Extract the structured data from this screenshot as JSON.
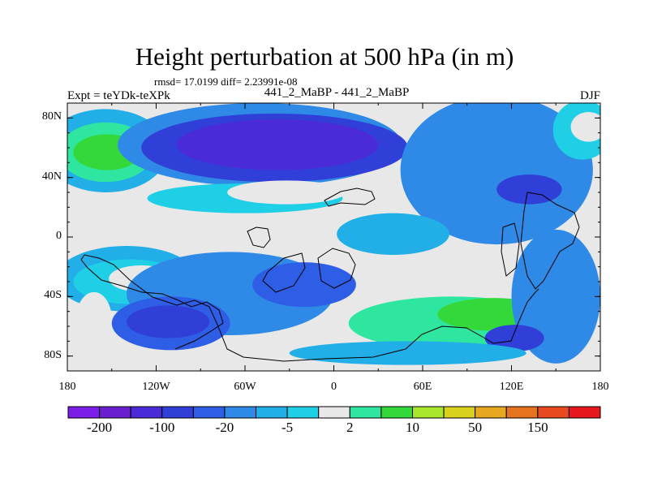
{
  "title": "Height perturbation at 500 hPa (in m)",
  "stats": "rmsd= 17.0199 diff= 2.23991e-08",
  "experiment": "Expt = teYDk-teXPk",
  "center_label": "441_2_MaBP - 441_2_MaBP",
  "season": "DJF",
  "map": {
    "projection": "cylindrical equidistant",
    "lon_range": [
      -180,
      180
    ],
    "lat_range": [
      -90,
      90
    ],
    "lat_ticks": [
      {
        "value": 80,
        "label": "80N"
      },
      {
        "value": 40,
        "label": "40N"
      },
      {
        "value": 0,
        "label": "0"
      },
      {
        "value": -40,
        "label": "40S"
      },
      {
        "value": -80,
        "label": "80S"
      }
    ],
    "lon_ticks": [
      {
        "value": -180,
        "label": "180"
      },
      {
        "value": -120,
        "label": "120W"
      },
      {
        "value": -60,
        "label": "60W"
      },
      {
        "value": 0,
        "label": "0"
      },
      {
        "value": 60,
        "label": "60E"
      },
      {
        "value": 120,
        "label": "120E"
      },
      {
        "value": 180,
        "label": "180"
      }
    ],
    "background_level_color": "#e8e8e8",
    "regions": [
      {
        "level": 6,
        "lon": -154,
        "lat": 58,
        "rx": 42,
        "ry": 28
      },
      {
        "level": 9,
        "lon": -154,
        "lat": 57,
        "rx": 32,
        "ry": 20
      },
      {
        "level": 10,
        "lon": -153,
        "lat": 57,
        "rx": 23,
        "ry": 12
      },
      {
        "level": 5,
        "lon": -50,
        "lat": 62,
        "rx": 96,
        "ry": 28
      },
      {
        "level": 3,
        "lon": -40,
        "lat": 60,
        "rx": 90,
        "ry": 23
      },
      {
        "level": 2,
        "lon": -38,
        "lat": 62,
        "rx": 68,
        "ry": 17
      },
      {
        "level": 7,
        "lon": -60,
        "lat": 26,
        "rx": 66,
        "ry": 10
      },
      {
        "level": 8,
        "lon": -32,
        "lat": 30,
        "rx": 40,
        "ry": 8
      },
      {
        "level": 5,
        "lon": 110,
        "lat": 45,
        "rx": 65,
        "ry": 50
      },
      {
        "level": 3,
        "lon": 132,
        "lat": 32,
        "rx": 22,
        "ry": 10
      },
      {
        "level": 7,
        "lon": 168,
        "lat": 72,
        "rx": 20,
        "ry": 20
      },
      {
        "level": 8,
        "lon": 172,
        "lat": 74,
        "rx": 12,
        "ry": 10
      },
      {
        "level": 6,
        "lon": 40,
        "lat": 2,
        "rx": 38,
        "ry": 14
      },
      {
        "level": 6,
        "lon": -140,
        "lat": -28,
        "rx": 48,
        "ry": 22
      },
      {
        "level": 7,
        "lon": -138,
        "lat": -30,
        "rx": 38,
        "ry": 15
      },
      {
        "level": 8,
        "lon": -130,
        "lat": -28,
        "rx": 22,
        "ry": 9
      },
      {
        "level": 5,
        "lon": -70,
        "lat": -38,
        "rx": 70,
        "ry": 28
      },
      {
        "level": 4,
        "lon": -110,
        "lat": -58,
        "rx": 40,
        "ry": 18
      },
      {
        "level": 3,
        "lon": -112,
        "lat": -57,
        "rx": 28,
        "ry": 11
      },
      {
        "level": 8,
        "lon": -162,
        "lat": -55,
        "rx": 12,
        "ry": 18
      },
      {
        "level": 9,
        "lon": 80,
        "lat": -58,
        "rx": 70,
        "ry": 18
      },
      {
        "level": 10,
        "lon": 108,
        "lat": -52,
        "rx": 38,
        "ry": 11
      },
      {
        "level": 5,
        "lon": 150,
        "lat": -40,
        "rx": 30,
        "ry": 45
      },
      {
        "level": 3,
        "lon": 122,
        "lat": -68,
        "rx": 20,
        "ry": 9
      },
      {
        "level": 6,
        "lon": 50,
        "lat": -78,
        "rx": 80,
        "ry": 8
      },
      {
        "level": 4,
        "lon": -20,
        "lat": -32,
        "rx": 35,
        "ry": 15
      }
    ]
  },
  "colorbar": {
    "colors": [
      "#7b1ee8",
      "#6a1ed0",
      "#4b2bd8",
      "#2f3fd8",
      "#2f5ee6",
      "#2e8ae6",
      "#22aee6",
      "#1ecfe6",
      "#e8e8e8",
      "#2ee6a0",
      "#35d83a",
      "#a8e62e",
      "#d8d21e",
      "#e6a81e",
      "#e6731e",
      "#e64a1e",
      "#e6181e"
    ],
    "labels": [
      {
        "value": "-200",
        "after_box": 1
      },
      {
        "value": "-100",
        "after_box": 3
      },
      {
        "value": "-20",
        "after_box": 5
      },
      {
        "value": "-5",
        "after_box": 7
      },
      {
        "value": "2",
        "after_box": 9
      },
      {
        "value": "10",
        "after_box": 11
      },
      {
        "value": "50",
        "after_box": 13
      },
      {
        "value": "150",
        "after_box": 15
      }
    ]
  }
}
